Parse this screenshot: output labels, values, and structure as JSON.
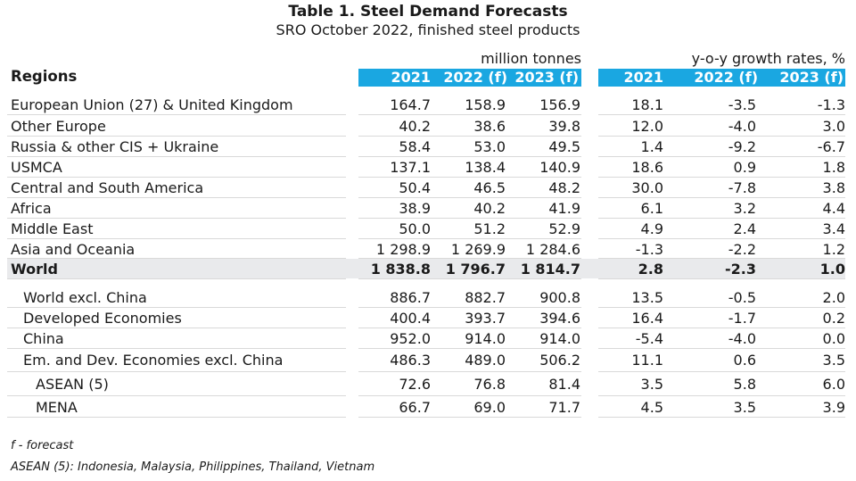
{
  "title": "Table 1. Steel Demand Forecasts",
  "subtitle": "SRO October 2022, finished steel products",
  "unit_left": "million tonnes",
  "unit_right": "y-o-y growth rates, %",
  "header": {
    "regions": "Regions",
    "cols_left": [
      "2021",
      "2022 (f)",
      "2023 (f)"
    ],
    "cols_right": [
      "2021",
      "2022 (f)",
      "2023 (f)"
    ]
  },
  "rows": [
    {
      "label": "European Union (27) & United Kingdom",
      "v": [
        "164.7",
        "158.9",
        "156.9"
      ],
      "g": [
        "18.1",
        "-3.5",
        "-1.3"
      ]
    },
    {
      "label": "Other Europe",
      "v": [
        "40.2",
        "38.6",
        "39.8"
      ],
      "g": [
        "12.0",
        "-4.0",
        "3.0"
      ]
    },
    {
      "label": "Russia & other CIS + Ukraine",
      "v": [
        "58.4",
        "53.0",
        "49.5"
      ],
      "g": [
        "1.4",
        "-9.2",
        "-6.7"
      ]
    },
    {
      "label": "USMCA",
      "v": [
        "137.1",
        "138.4",
        "140.9"
      ],
      "g": [
        "18.6",
        "0.9",
        "1.8"
      ]
    },
    {
      "label": "Central and South America",
      "v": [
        "50.4",
        "46.5",
        "48.2"
      ],
      "g": [
        "30.0",
        "-7.8",
        "3.8"
      ]
    },
    {
      "label": "Africa",
      "v": [
        "38.9",
        "40.2",
        "41.9"
      ],
      "g": [
        "6.1",
        "3.2",
        "4.4"
      ]
    },
    {
      "label": "Middle East",
      "v": [
        "50.0",
        "51.2",
        "52.9"
      ],
      "g": [
        "4.9",
        "2.4",
        "3.4"
      ]
    },
    {
      "label": "Asia and Oceania",
      "v": [
        "1 298.9",
        "1 269.9",
        "1 284.6"
      ],
      "g": [
        "-1.3",
        "-2.2",
        "1.2"
      ]
    },
    {
      "label": "World",
      "v": [
        "1 838.8",
        "1 796.7",
        "1 814.7"
      ],
      "g": [
        "2.8",
        "-2.3",
        "1.0"
      ]
    },
    {
      "label": "World excl. China",
      "v": [
        "886.7",
        "882.7",
        "900.8"
      ],
      "g": [
        "13.5",
        "-0.5",
        "2.0"
      ]
    },
    {
      "label": "Developed Economies",
      "v": [
        "400.4",
        "393.7",
        "394.6"
      ],
      "g": [
        "16.4",
        "-1.7",
        "0.2"
      ]
    },
    {
      "label": "China",
      "v": [
        "952.0",
        "914.0",
        "914.0"
      ],
      "g": [
        "-5.4",
        "-4.0",
        "0.0"
      ]
    },
    {
      "label": "Em. and Dev. Economies excl. China",
      "v": [
        "486.3",
        "489.0",
        "506.2"
      ],
      "g": [
        "11.1",
        "0.6",
        "3.5"
      ]
    },
    {
      "label": "ASEAN (5)",
      "v": [
        "72.6",
        "76.8",
        "81.4"
      ],
      "g": [
        "3.5",
        "5.8",
        "6.0"
      ]
    },
    {
      "label": "MENA",
      "v": [
        "66.7",
        "69.0",
        "71.7"
      ],
      "g": [
        "4.5",
        "3.5",
        "3.9"
      ]
    }
  ],
  "footnotes": {
    "forecast": "f - forecast",
    "asean": "ASEAN (5): Indonesia, Malaysia, Philippines, Thailand, Vietnam"
  },
  "colors": {
    "header_bar": "#1aa7e1",
    "world_row": "#e9eaec"
  }
}
